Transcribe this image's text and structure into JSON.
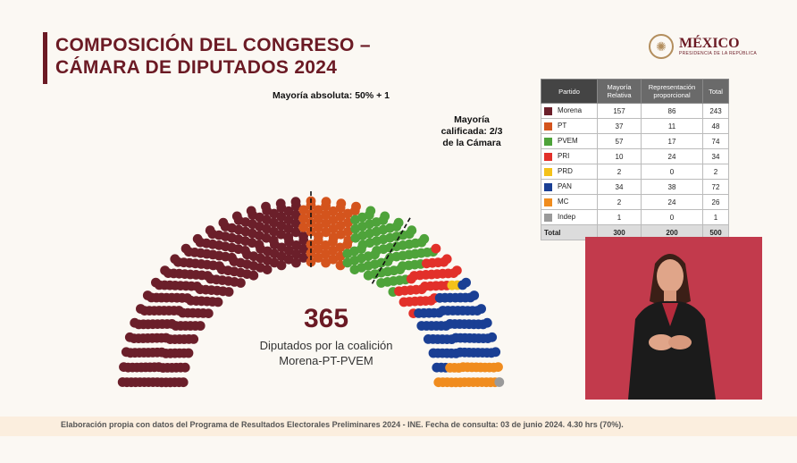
{
  "slide": {
    "title_line1": "COMPOSICIÓN DEL CONGRESO –",
    "title_line2": "CÁMARA DE DIPUTADOS 2024",
    "logo_main": "MÉXICO",
    "logo_sub": "PRESIDENCIA DE LA REPÚBLICA",
    "majority_label": "Mayoría absoluta: 50% + 1",
    "qualified_line1": "Mayoría",
    "qualified_line2": "calificada: 2/3",
    "qualified_line3": "de la Cámara",
    "coalition_seats": "365",
    "coalition_line1": "Diputados por la coalición",
    "coalition_line2": "Morena-PT-PVEM",
    "footer": "Elaboración propia con datos del Programa de Resultados Electorales Preliminares 2024 - INE. Fecha de consulta: 03 de junio 2024. 4.30 hrs (70%)."
  },
  "chart_data": {
    "type": "parliament",
    "total_seats": 500,
    "rows": 15,
    "series": [
      {
        "name": "Morena",
        "values": [
          157,
          86,
          243
        ],
        "color": "#6b1f2a"
      },
      {
        "name": "PT",
        "values": [
          37,
          11,
          48
        ],
        "color": "#d4541d"
      },
      {
        "name": "PVEM",
        "values": [
          57,
          17,
          74
        ],
        "color": "#4ea33a"
      },
      {
        "name": "PRI",
        "values": [
          10,
          24,
          34
        ],
        "color": "#e2302a"
      },
      {
        "name": "PRD",
        "values": [
          2,
          0,
          2
        ],
        "color": "#f4c21a"
      },
      {
        "name": "PAN",
        "values": [
          34,
          38,
          72
        ],
        "color": "#1a3f94"
      },
      {
        "name": "MC",
        "values": [
          2,
          24,
          26
        ],
        "color": "#f08c1e"
      },
      {
        "name": "Indep",
        "values": [
          1,
          0,
          1
        ],
        "color": "#9a9a9a"
      }
    ],
    "table": {
      "headers": [
        "Partido",
        "Mayoría Relativa",
        "Representación proporcional",
        "Total"
      ],
      "total_row": {
        "label": "Total",
        "values": [
          300,
          200,
          500
        ]
      }
    },
    "majority_threshold_fraction": 0.5,
    "qualified_threshold_fraction": 0.6667
  }
}
